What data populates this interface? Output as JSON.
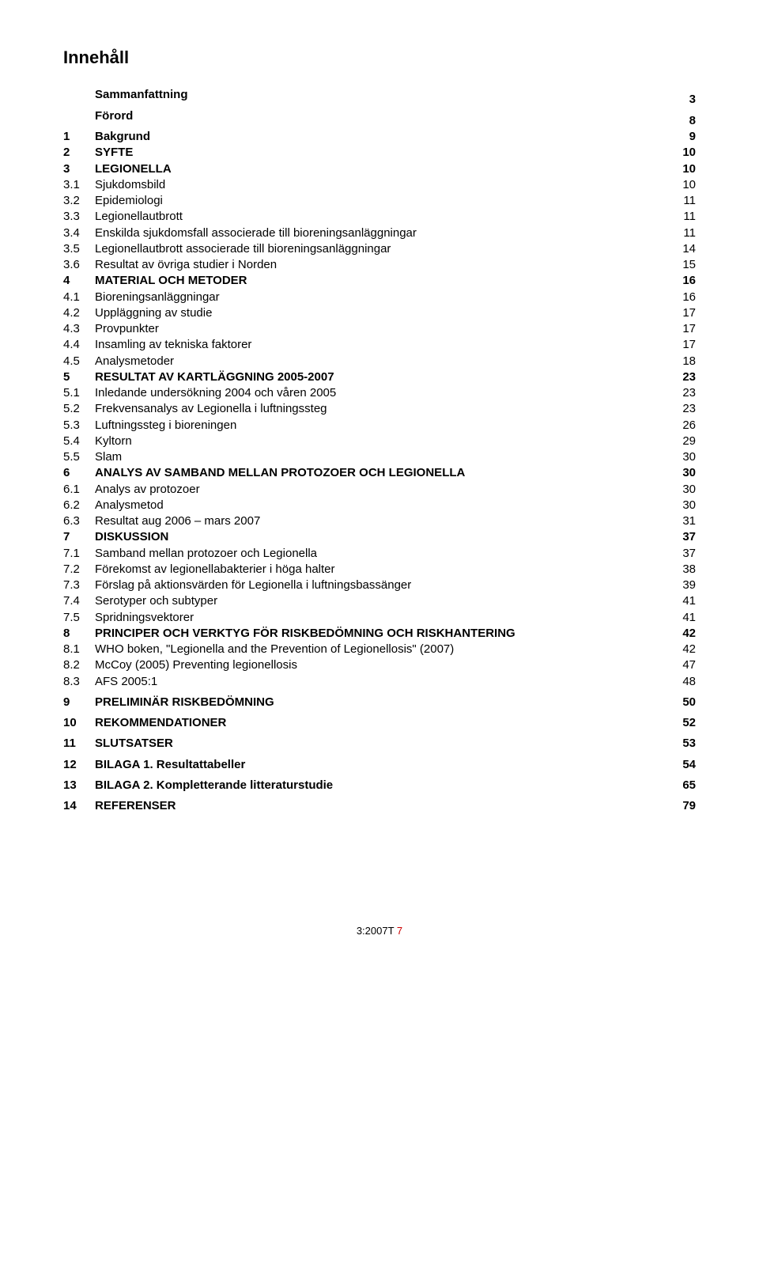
{
  "title": "Innehåll",
  "entries": [
    {
      "num": "",
      "text": "Sammanfattning",
      "page": "3",
      "bold": true,
      "level": 1,
      "top": false
    },
    {
      "num": "",
      "text": "Förord",
      "page": "8",
      "bold": true,
      "level": 1,
      "top": false
    },
    {
      "num": "1",
      "text": "Bakgrund",
      "page": "9",
      "bold": true,
      "level": 1,
      "top": false
    },
    {
      "num": "2",
      "text": "SYFTE",
      "page": "10",
      "bold": true,
      "level": 1,
      "top": false
    },
    {
      "num": "3",
      "text": "LEGIONELLA",
      "page": "10",
      "bold": true,
      "level": 1,
      "top": false
    },
    {
      "num": "3.1",
      "text": "Sjukdomsbild",
      "page": "10",
      "bold": false,
      "level": 2,
      "top": false
    },
    {
      "num": "3.2",
      "text": "Epidemiologi",
      "page": "11",
      "bold": false,
      "level": 2,
      "top": false
    },
    {
      "num": "3.3",
      "text": "Legionellautbrott",
      "page": "11",
      "bold": false,
      "level": 2,
      "top": false
    },
    {
      "num": "3.4",
      "text": "Enskilda sjukdomsfall associerade till bioreningsanläggningar",
      "page": "11",
      "bold": false,
      "level": 2,
      "top": false
    },
    {
      "num": "3.5",
      "text": "Legionellautbrott associerade till bioreningsanläggningar",
      "page": "14",
      "bold": false,
      "level": 2,
      "top": false
    },
    {
      "num": "3.6",
      "text": "Resultat av övriga studier i Norden",
      "page": "15",
      "bold": false,
      "level": 2,
      "top": false
    },
    {
      "num": "4",
      "text": "MATERIAL OCH METODER",
      "page": "16",
      "bold": true,
      "level": 1,
      "top": false
    },
    {
      "num": "4.1",
      "text": "Bioreningsanläggningar",
      "page": "16",
      "bold": false,
      "level": 2,
      "top": false
    },
    {
      "num": "4.2",
      "text": "Uppläggning av studie",
      "page": "17",
      "bold": false,
      "level": 2,
      "top": false
    },
    {
      "num": "4.3",
      "text": "Provpunkter",
      "page": "17",
      "bold": false,
      "level": 2,
      "top": false
    },
    {
      "num": "4.4",
      "text": "Insamling av tekniska faktorer",
      "page": "17",
      "bold": false,
      "level": 2,
      "top": false
    },
    {
      "num": "4.5",
      "text": "Analysmetoder",
      "page": "18",
      "bold": false,
      "level": 2,
      "top": false
    },
    {
      "num": "5",
      "text": "RESULTAT AV KARTLÄGGNING 2005-2007",
      "page": "23",
      "bold": true,
      "level": 1,
      "top": false
    },
    {
      "num": "5.1",
      "text": "Inledande undersökning 2004 och våren 2005",
      "page": "23",
      "bold": false,
      "level": 2,
      "top": false
    },
    {
      "num": "5.2",
      "text": "Frekvensanalys av Legionella i luftningssteg",
      "page": "23",
      "bold": false,
      "level": 2,
      "top": false
    },
    {
      "num": "5.3",
      "text": "Luftningssteg i bioreningen",
      "page": "26",
      "bold": false,
      "level": 2,
      "top": false
    },
    {
      "num": "5.4",
      "text": "Kyltorn",
      "page": "29",
      "bold": false,
      "level": 2,
      "top": false
    },
    {
      "num": "5.5",
      "text": "Slam",
      "page": "30",
      "bold": false,
      "level": 2,
      "top": false
    },
    {
      "num": "6",
      "text": "ANALYS AV SAMBAND MELLAN PROTOZOER OCH LEGIONELLA",
      "page": "30",
      "bold": true,
      "level": 1,
      "top": false
    },
    {
      "num": "6.1",
      "text": "Analys av protozoer",
      "page": "30",
      "bold": false,
      "level": 2,
      "top": false
    },
    {
      "num": "6.2",
      "text": "Analysmetod",
      "page": "30",
      "bold": false,
      "level": 2,
      "top": false
    },
    {
      "num": "6.3",
      "text": "Resultat aug 2006 – mars 2007",
      "page": "31",
      "bold": false,
      "level": 2,
      "top": false
    },
    {
      "num": "7",
      "text": "DISKUSSION",
      "page": "37",
      "bold": true,
      "level": 1,
      "top": false
    },
    {
      "num": "7.1",
      "text": "Samband mellan protozoer och Legionella",
      "page": "37",
      "bold": false,
      "level": 2,
      "top": false
    },
    {
      "num": "7.2",
      "text": "Förekomst av legionellabakterier i höga halter",
      "page": "38",
      "bold": false,
      "level": 2,
      "top": false
    },
    {
      "num": "7.3",
      "text": "Förslag på aktionsvärden för Legionella i luftningsbassänger",
      "page": "39",
      "bold": false,
      "level": 2,
      "top": false
    },
    {
      "num": "7.4",
      "text": "Serotyper och subtyper",
      "page": "41",
      "bold": false,
      "level": 2,
      "top": false
    },
    {
      "num": "7.5",
      "text": "Spridningsvektorer",
      "page": "41",
      "bold": false,
      "level": 2,
      "top": false
    },
    {
      "num": "8",
      "text": "PRINCIPER OCH VERKTYG FÖR RISKBEDÖMNING OCH RISKHANTERING",
      "page": "42",
      "bold": true,
      "level": 1,
      "top": false
    },
    {
      "num": "8.1",
      "text": "WHO boken, \"Legionella and the Prevention of Legionellosis\" (2007)",
      "page": "42",
      "bold": false,
      "level": 2,
      "top": false
    },
    {
      "num": "8.2",
      "text": "McCoy (2005) Preventing legionellosis",
      "page": "47",
      "bold": false,
      "level": 2,
      "top": false
    },
    {
      "num": "8.3",
      "text": "AFS 2005:1",
      "page": "48",
      "bold": false,
      "level": 2,
      "top": false
    },
    {
      "num": "9",
      "text": "PRELIMINÄR RISKBEDÖMNING",
      "page": "50",
      "bold": true,
      "level": 1,
      "top": true
    },
    {
      "num": "10",
      "text": "REKOMMENDATIONER",
      "page": "52",
      "bold": true,
      "level": 1,
      "top": true
    },
    {
      "num": "11",
      "text": "SLUTSATSER",
      "page": "53",
      "bold": true,
      "level": 1,
      "top": true
    },
    {
      "num": "12",
      "text": "BILAGA 1. Resultattabeller",
      "page": "54",
      "bold": true,
      "level": 1,
      "top": true
    },
    {
      "num": "13",
      "text": "BILAGA 2. Kompletterande litteraturstudie",
      "page": "65",
      "bold": true,
      "level": 1,
      "top": true
    },
    {
      "num": "14",
      "text": "REFERENSER",
      "page": "79",
      "bold": true,
      "level": 1,
      "top": true
    }
  ],
  "footer": {
    "label": "3:2007T",
    "page": "7"
  }
}
